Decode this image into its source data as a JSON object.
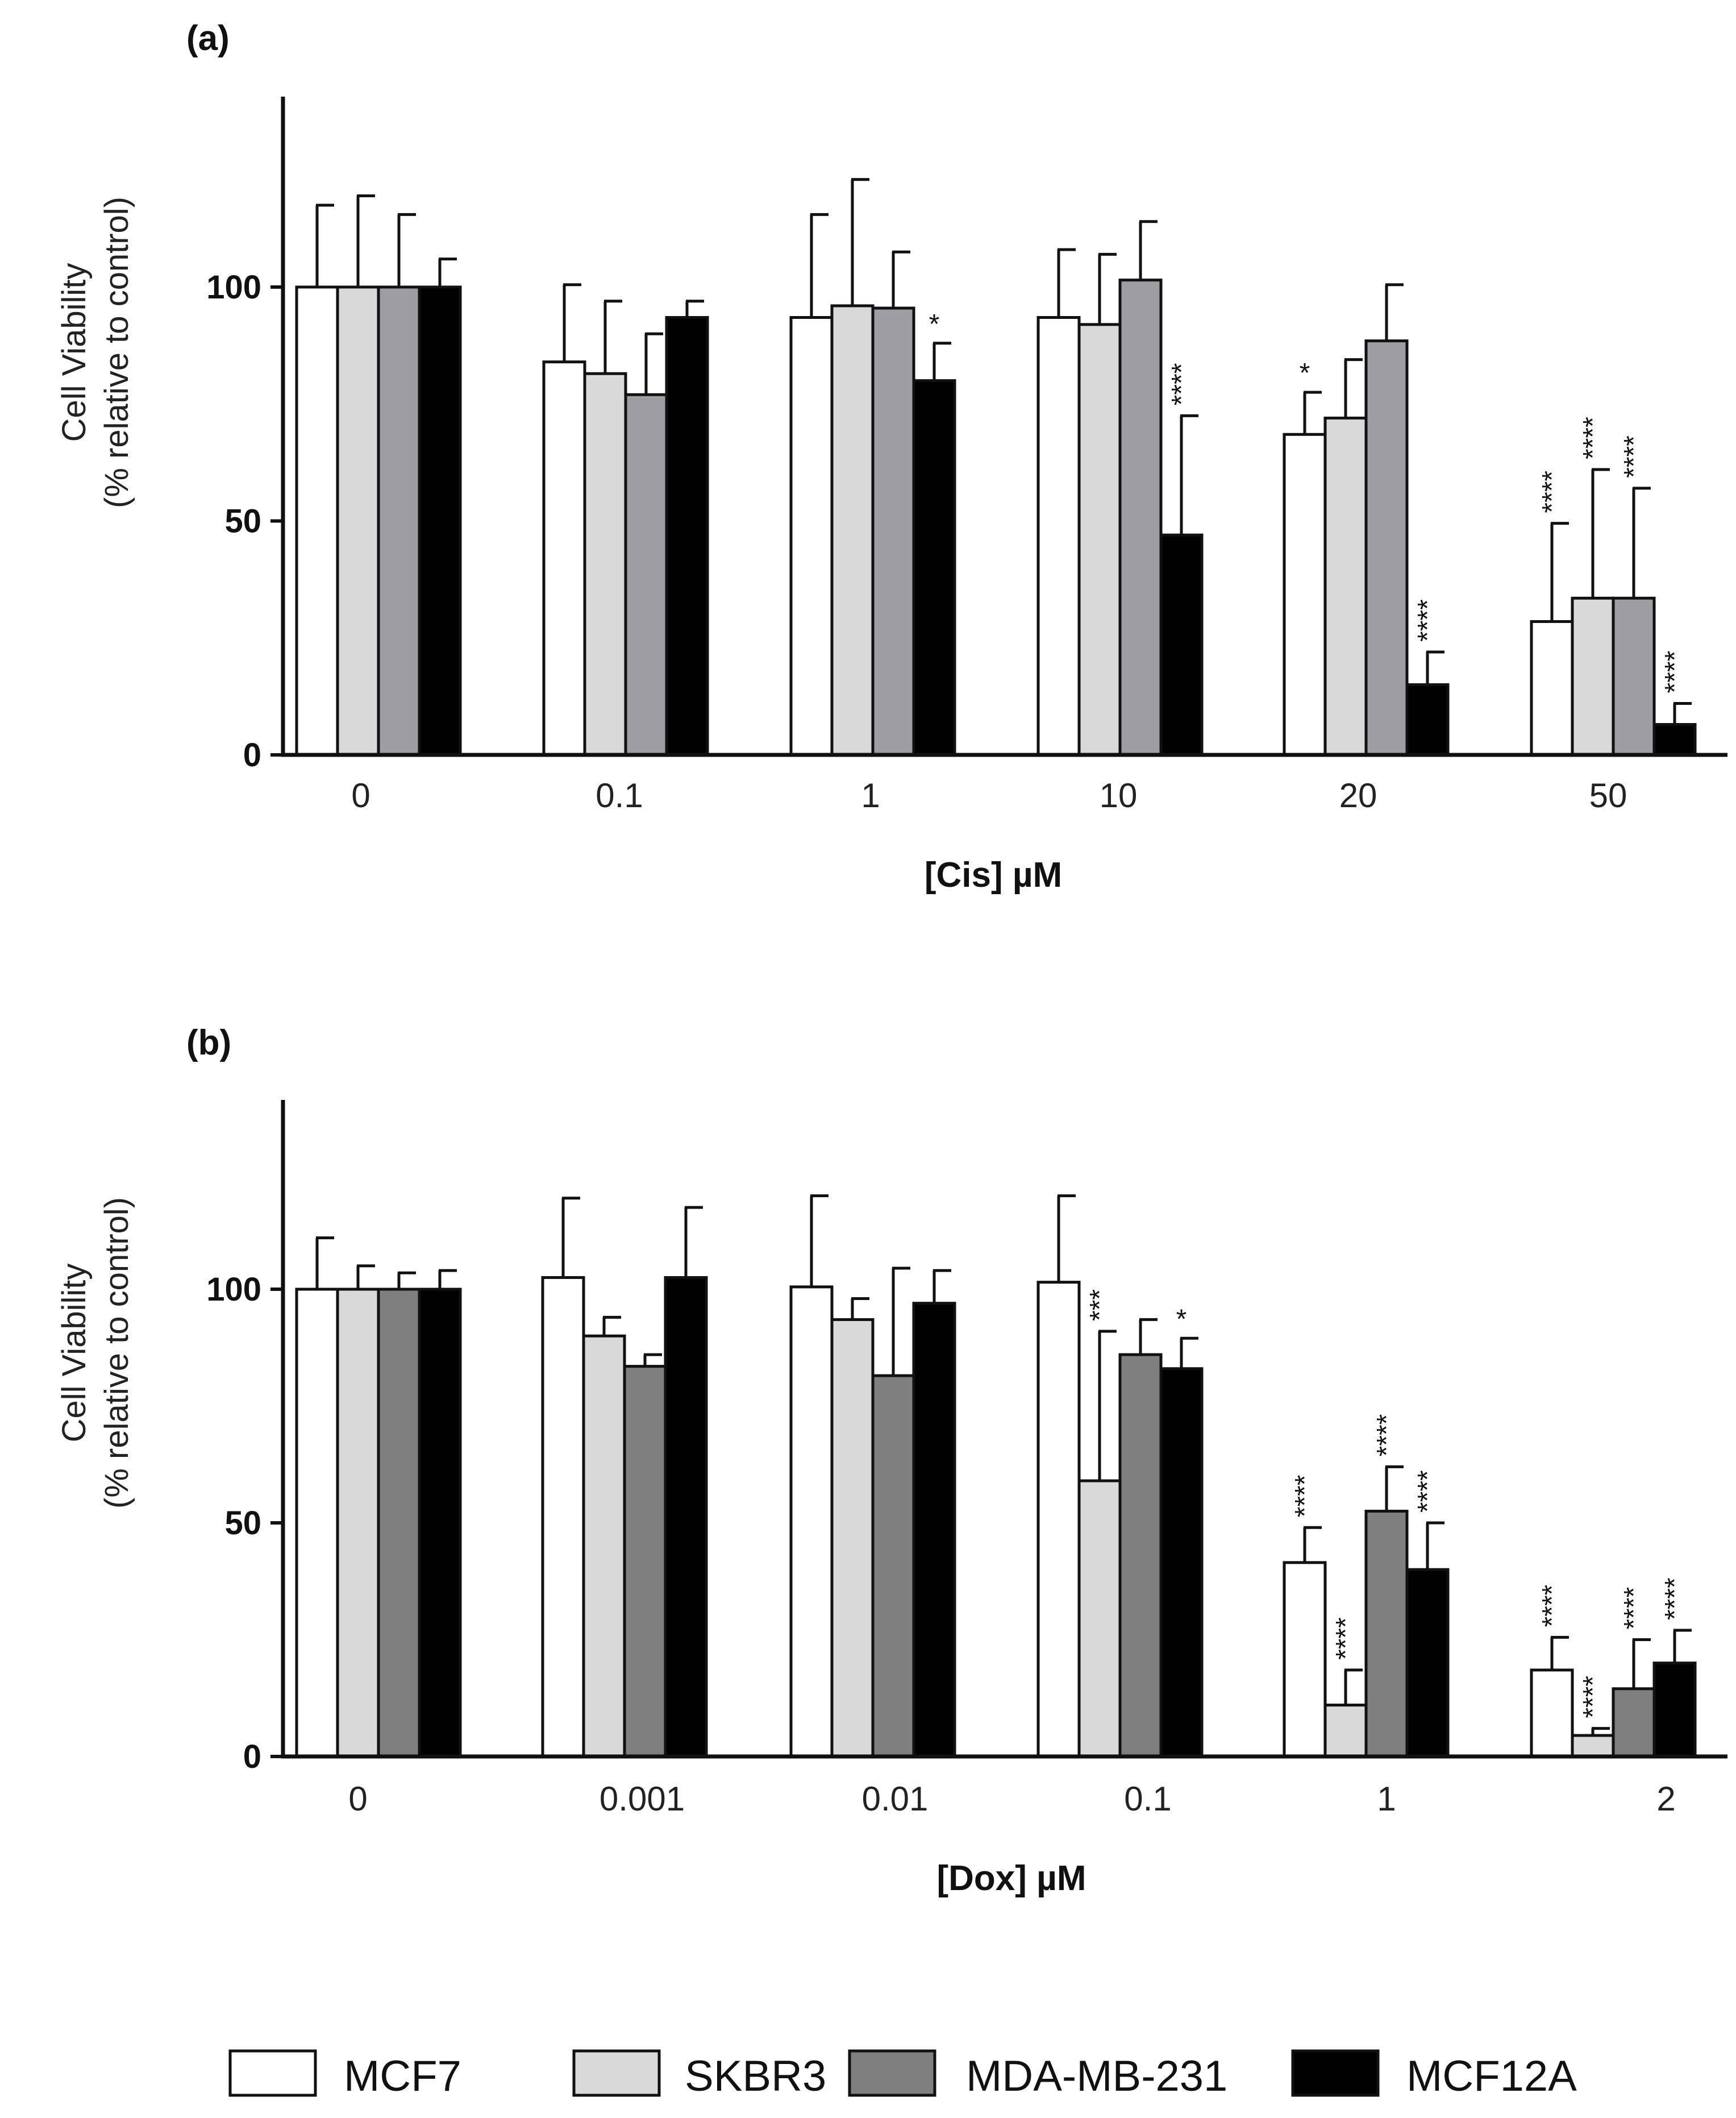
{
  "chart_data": [
    {
      "type": "bar",
      "panel": "(a)",
      "title": "",
      "xlabel": "[Cis] µM",
      "ylabel_line1": "Cell Viability",
      "ylabel_line2": "(% relative to control)",
      "ylim": [
        0,
        140
      ],
      "yticks": [
        "0",
        "50",
        "100"
      ],
      "ytick_values": [
        0,
        50,
        100
      ],
      "categories": [
        "0",
        "0.1",
        "1",
        "10",
        "20",
        "50"
      ],
      "series": [
        {
          "name": "MCF7",
          "values": [
            100,
            84,
            93.5,
            93.5,
            68.5,
            28.5
          ],
          "errors": [
            17.5,
            16.5,
            22,
            14.5,
            9,
            21
          ],
          "sig": [
            "",
            "",
            "",
            "",
            "*",
            "****"
          ]
        },
        {
          "name": "SKBR3",
          "values": [
            100,
            81.5,
            96,
            92,
            72,
            33.5
          ],
          "errors": [
            19.5,
            15.5,
            27,
            15,
            12.5,
            27.5
          ],
          "sig": [
            "",
            "",
            "",
            "",
            "",
            "****"
          ]
        },
        {
          "name": "MDA-MB-231",
          "values": [
            100,
            77,
            95.5,
            101.5,
            88.5,
            33.5
          ],
          "errors": [
            15.5,
            13,
            12,
            12.5,
            12,
            23.5
          ],
          "sig": [
            "",
            "",
            "",
            "",
            "",
            "****"
          ]
        },
        {
          "name": "MCF12A",
          "values": [
            100,
            93.5,
            80,
            47,
            15,
            6.5
          ],
          "errors": [
            6,
            3.5,
            8,
            25.5,
            7,
            4.5
          ],
          "sig": [
            "",
            "",
            "*",
            "****",
            "****",
            "****"
          ]
        }
      ]
    },
    {
      "type": "bar",
      "panel": "(b)",
      "title": "",
      "xlabel": "[Dox] µM",
      "ylabel_line1": "Cell Viability",
      "ylabel_line2": "(% relative to control)",
      "ylim": [
        0,
        140
      ],
      "yticks": [
        "0",
        "50",
        "100"
      ],
      "ytick_values": [
        0,
        50,
        100
      ],
      "categories": [
        "0",
        "0.001",
        "0.01",
        "0.1",
        "1",
        "2"
      ],
      "series": [
        {
          "name": "MCF7",
          "values": [
            100,
            102.5,
            100.5,
            101.5,
            41.5,
            18.5
          ],
          "errors": [
            11,
            17,
            19.5,
            18.5,
            7.5,
            7
          ],
          "sig": [
            "",
            "",
            "",
            "",
            "****",
            "****"
          ]
        },
        {
          "name": "SKBR3",
          "values": [
            100,
            90,
            93.5,
            59,
            11,
            4.5
          ],
          "errors": [
            5,
            4,
            4.5,
            32,
            7.5,
            1.5
          ],
          "sig": [
            "",
            "",
            "",
            "***",
            "****",
            "****"
          ]
        },
        {
          "name": "MDA-MB-231",
          "values": [
            100,
            83.5,
            81.5,
            86,
            52.5,
            14.5
          ],
          "errors": [
            3.5,
            2.5,
            23,
            7.5,
            9.5,
            10.5
          ],
          "sig": [
            "",
            "",
            "",
            "",
            "****",
            "****"
          ]
        },
        {
          "name": "MCF12A",
          "values": [
            100,
            102.5,
            97,
            83,
            40,
            20
          ],
          "errors": [
            4,
            15,
            7,
            6.5,
            10,
            7
          ],
          "sig": [
            "",
            "",
            "",
            "*",
            "****",
            "****"
          ]
        }
      ]
    }
  ],
  "legend": [
    {
      "name": "MCF7",
      "color": "#ffffff"
    },
    {
      "name": "SKBR3",
      "color": "#d9d9d9"
    },
    {
      "name": "MDA-MB-231",
      "color": "#7f7f7f"
    },
    {
      "name": "MCF12A",
      "color": "#000000"
    }
  ],
  "colors": {
    "panel_a": [
      "#ffffff",
      "#d9d9d9",
      "#9d9da3",
      "#000000"
    ],
    "panel_b": [
      "#ffffff",
      "#d9d9d9",
      "#7f7f7f",
      "#000000"
    ],
    "stroke": "#111111"
  }
}
